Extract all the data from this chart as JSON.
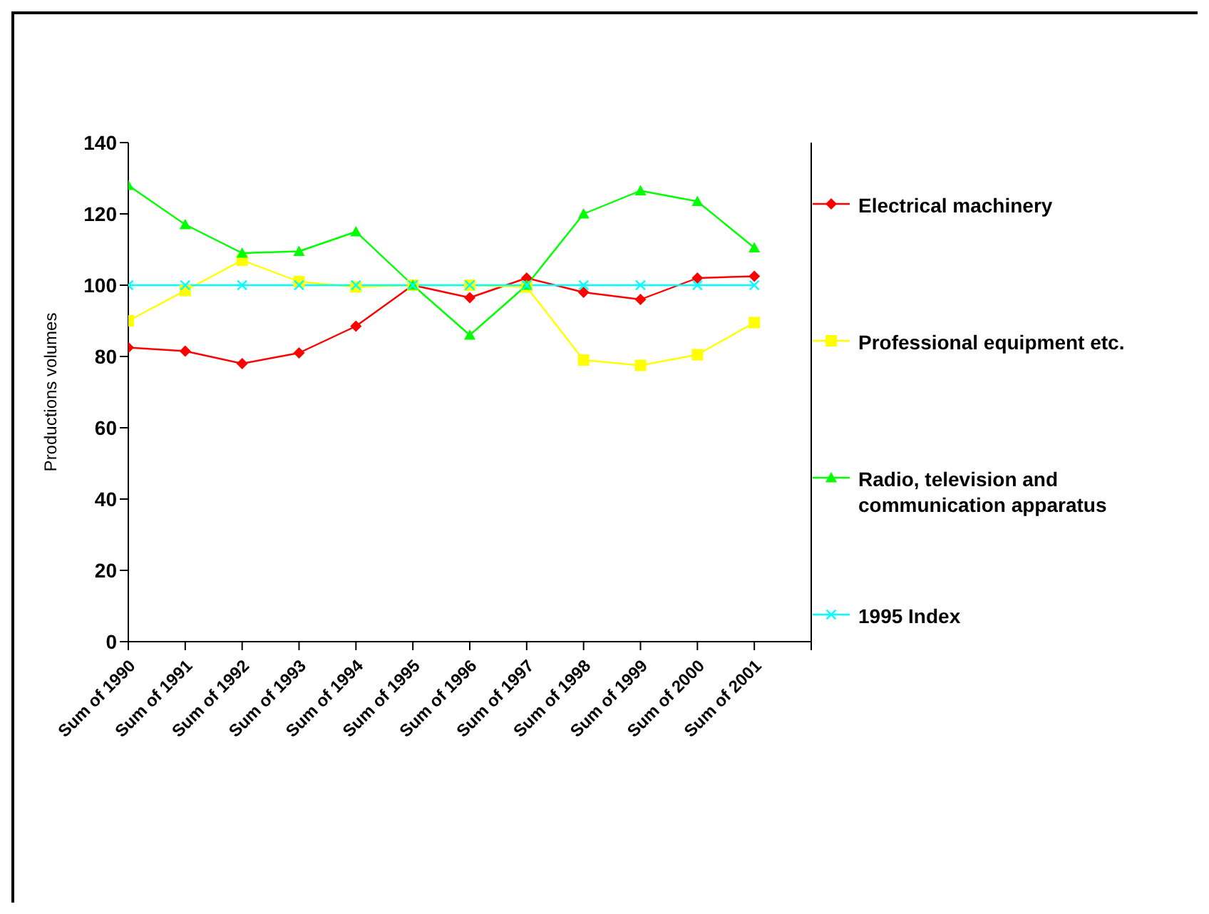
{
  "chart_data": {
    "type": "line",
    "ylabel": "Productions volumes",
    "categories": [
      "Sum of 1990",
      "Sum of 1991",
      "Sum of 1992",
      "Sum of 1993",
      "Sum of 1994",
      "Sum of 1995",
      "Sum of 1996",
      "Sum of 1997",
      "Sum of 1998",
      "Sum of 1999",
      "Sum of 2000",
      "Sum of 2001"
    ],
    "series": [
      {
        "name": "Electrical machinery",
        "color": "#ff0000",
        "marker": "diamond",
        "values": [
          82.5,
          81.5,
          78,
          81,
          88.5,
          100,
          96.5,
          102,
          98,
          96,
          102,
          102.5
        ]
      },
      {
        "name": "Professional equipment etc.",
        "color": "#ffff00",
        "marker": "square",
        "values": [
          90,
          98.5,
          107,
          101,
          99.5,
          100,
          100,
          99.5,
          79,
          77.5,
          80.5,
          89.5
        ]
      },
      {
        "name": "Radio, television and communication apparatus",
        "color": "#00ff00",
        "marker": "triangle",
        "values": [
          128,
          117,
          109,
          109.5,
          115,
          100,
          86,
          100,
          120,
          126.5,
          123.5,
          110.5
        ]
      },
      {
        "name": "1995 Index",
        "color": "#00ffff",
        "marker": "cross",
        "values": [
          100,
          100,
          100,
          100,
          100,
          100,
          100,
          100,
          100,
          100,
          100,
          100
        ]
      }
    ],
    "ylim": [
      0,
      140
    ],
    "yticks": [
      0,
      20,
      40,
      60,
      80,
      100,
      120,
      140
    ],
    "legend": "right",
    "grid": false
  }
}
